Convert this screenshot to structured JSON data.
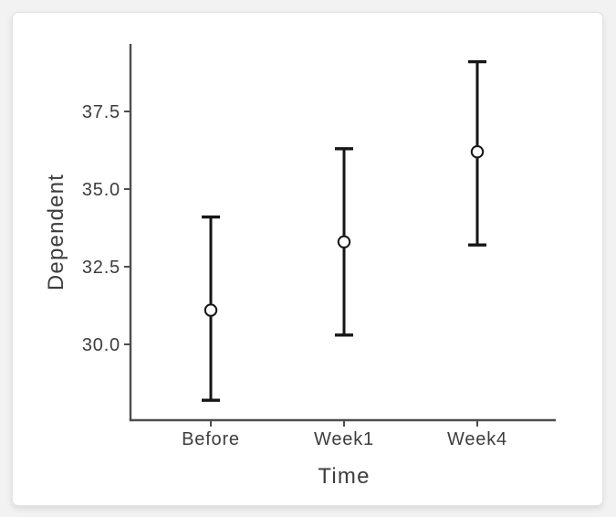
{
  "chart_data": {
    "type": "errorbar",
    "title": "",
    "xlabel": "Time",
    "ylabel": "Dependent",
    "categories": [
      "Before",
      "Week1",
      "Week4"
    ],
    "series": [
      {
        "name": "Dependent",
        "means": [
          31.1,
          33.3,
          36.2
        ],
        "upper": [
          34.1,
          36.3,
          39.1
        ],
        "lower": [
          28.2,
          30.3,
          33.2
        ]
      }
    ],
    "ytick_labels": [
      "30.0",
      "32.5",
      "35.0",
      "37.5"
    ],
    "ytick_values": [
      30.0,
      32.5,
      35.0,
      37.5
    ],
    "ylim": [
      27.6,
      39.7
    ],
    "grid": false,
    "legend": "none",
    "marker": "open-circle",
    "colors": {
      "errorbar_line": "#161616",
      "marker_fill": "#ffffff",
      "axis_line": "#4d4d4d",
      "text": "#3d3d3d",
      "plot_background": "#ffffff",
      "page_background": "#f2f2f2",
      "card_border": "#e3e3e3"
    }
  }
}
